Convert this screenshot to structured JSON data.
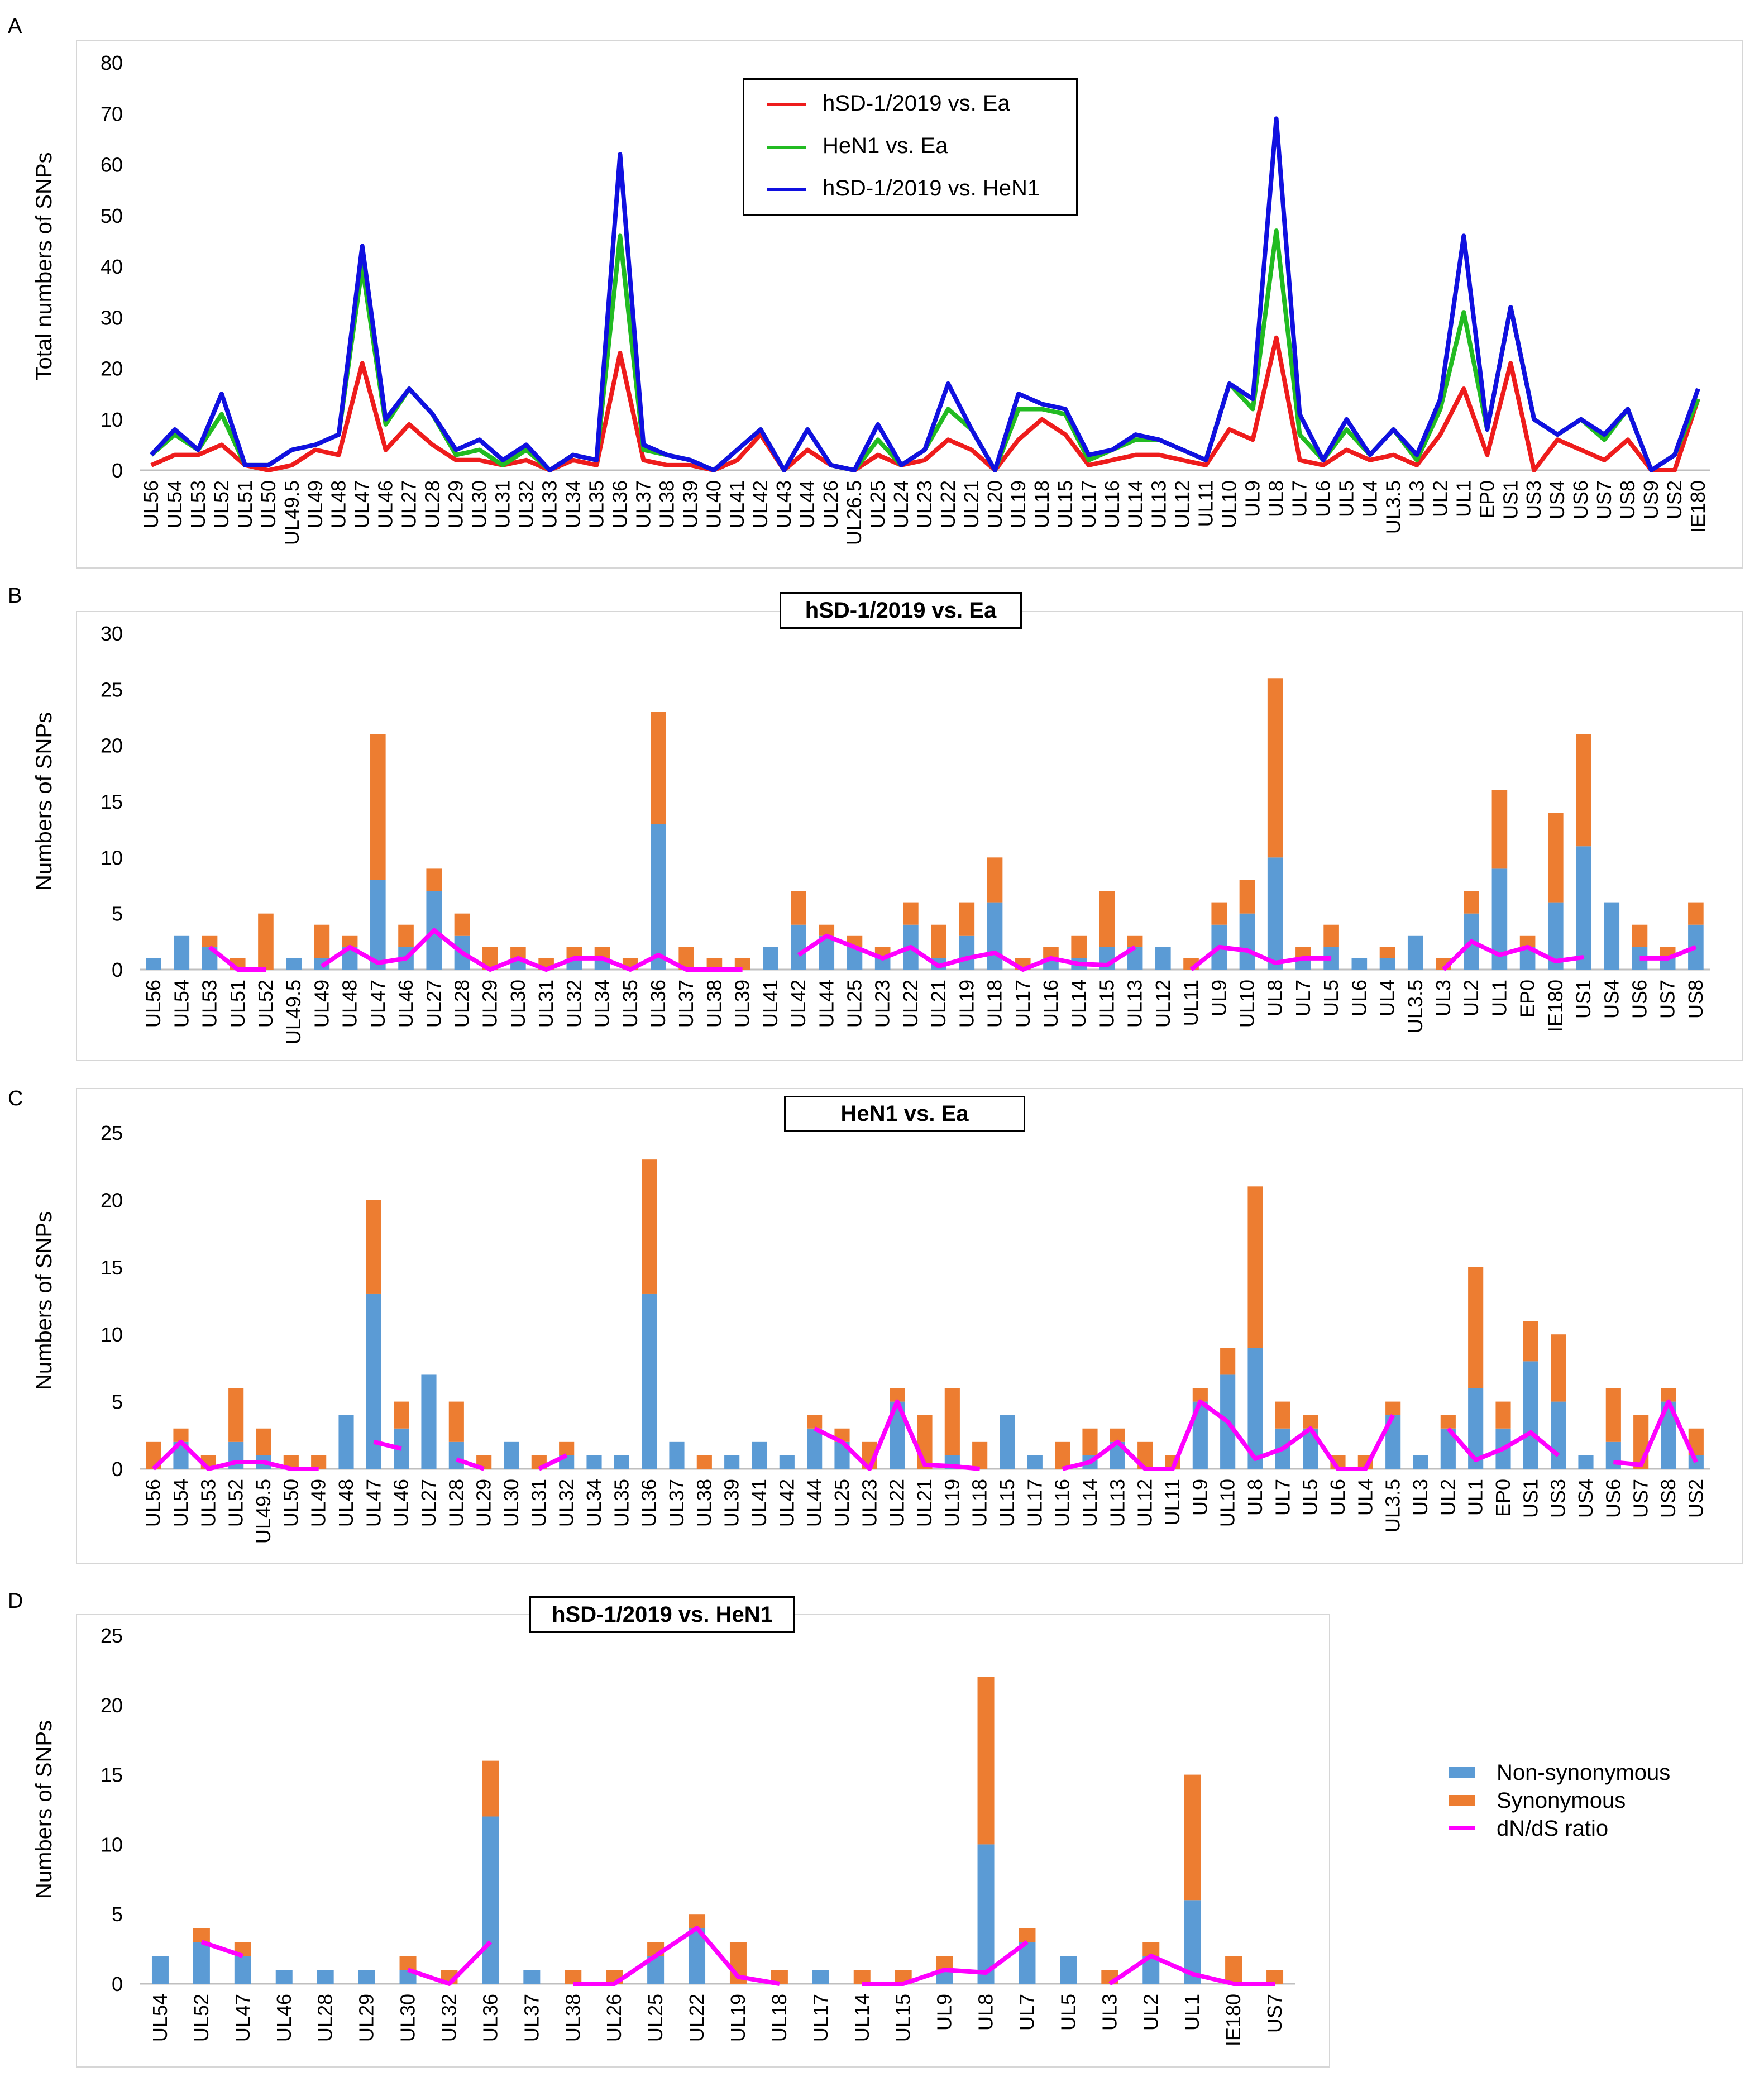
{
  "panels": {
    "a": {
      "letter": "A"
    },
    "b": {
      "letter": "B"
    },
    "c": {
      "letter": "C"
    },
    "d": {
      "letter": "D"
    }
  },
  "colors": {
    "red": "#ee1c1c",
    "green": "#22bb22",
    "blue": "#1010e0",
    "nonsyn": "#5b9bd5",
    "syn": "#ed7d31",
    "ratio": "#ff00ff",
    "grid": "#d9d9d9",
    "axis": "#bfbfbf"
  },
  "legend_a": {
    "items": [
      {
        "label": "hSD-1/2019 vs. Ea",
        "color": "#ee1c1c"
      },
      {
        "label": "HeN1 vs. Ea",
        "color": "#22bb22"
      },
      {
        "label": "hSD-1/2019 vs. HeN1",
        "color": "#1010e0"
      }
    ]
  },
  "legend_d": {
    "items": [
      {
        "label": "Non-synonymous",
        "kind": "swatch",
        "color": "#5b9bd5"
      },
      {
        "label": "Synonymous",
        "kind": "swatch",
        "color": "#ed7d31"
      },
      {
        "label": "dN/dS ratio",
        "kind": "line",
        "color": "#ff00ff"
      }
    ]
  },
  "chart_data": [
    {
      "id": "A",
      "type": "line",
      "title": "",
      "xlabel": "",
      "ylabel": "Total numbers of SNPs",
      "ylim": [
        0,
        80
      ],
      "yticks": [
        0,
        10,
        20,
        30,
        40,
        50,
        60,
        70,
        80
      ],
      "categories": [
        "UL56",
        "UL54",
        "UL53",
        "UL52",
        "UL51",
        "UL50",
        "UL49.5",
        "UL49",
        "UL48",
        "UL47",
        "UL46",
        "UL27",
        "UL28",
        "UL29",
        "UL30",
        "UL31",
        "UL32",
        "UL33",
        "UL34",
        "UL35",
        "UL36",
        "UL37",
        "UL38",
        "UL39",
        "UL40",
        "UL41",
        "UL42",
        "UL43",
        "UL44",
        "UL26",
        "UL26.5",
        "UL25",
        "UL24",
        "UL23",
        "UL22",
        "UL21",
        "UL20",
        "UL19",
        "UL18",
        "UL15",
        "UL17",
        "UL16",
        "UL14",
        "UL13",
        "UL12",
        "UL11",
        "UL10",
        "UL9",
        "UL8",
        "UL7",
        "UL6",
        "UL5",
        "UL4",
        "UL3.5",
        "UL3",
        "UL2",
        "UL1",
        "EP0",
        "US1",
        "US3",
        "US4",
        "US6",
        "US7",
        "US8",
        "US9",
        "US2",
        "IE180"
      ],
      "series": [
        {
          "name": "hSD-1/2019 vs. Ea",
          "color": "#ee1c1c",
          "values": [
            1,
            3,
            3,
            5,
            1,
            0,
            1,
            4,
            3,
            21,
            4,
            9,
            5,
            2,
            2,
            1,
            2,
            0,
            2,
            1,
            23,
            2,
            1,
            1,
            0,
            2,
            7,
            0,
            4,
            1,
            0,
            3,
            1,
            2,
            6,
            4,
            0,
            6,
            10,
            7,
            1,
            2,
            3,
            3,
            2,
            1,
            8,
            6,
            26,
            2,
            1,
            4,
            2,
            3,
            1,
            7,
            16,
            3,
            21,
            0,
            6,
            4,
            2,
            6,
            0,
            0,
            14
          ]
        },
        {
          "name": "HeN1 vs. Ea",
          "color": "#22bb22",
          "values": [
            3,
            7,
            4,
            11,
            1,
            1,
            4,
            5,
            7,
            40,
            9,
            16,
            11,
            3,
            4,
            1,
            4,
            0,
            3,
            2,
            46,
            4,
            3,
            2,
            0,
            4,
            8,
            0,
            8,
            1,
            0,
            6,
            1,
            4,
            12,
            8,
            0,
            12,
            12,
            11,
            2,
            4,
            6,
            6,
            4,
            2,
            17,
            12,
            47,
            7,
            2,
            8,
            3,
            8,
            2,
            12,
            31,
            8,
            32,
            10,
            7,
            10,
            6,
            12,
            0,
            3,
            14
          ]
        },
        {
          "name": "hSD-1/2019 vs. HeN1",
          "color": "#1010e0",
          "values": [
            3,
            8,
            4,
            15,
            1,
            1,
            4,
            5,
            7,
            44,
            10,
            16,
            11,
            4,
            6,
            2,
            5,
            0,
            3,
            2,
            62,
            5,
            3,
            2,
            0,
            4,
            8,
            0,
            8,
            1,
            0,
            9,
            1,
            4,
            17,
            8,
            0,
            15,
            13,
            12,
            3,
            4,
            7,
            6,
            4,
            2,
            17,
            14,
            69,
            11,
            2,
            10,
            3,
            8,
            3,
            14,
            46,
            8,
            32,
            10,
            7,
            10,
            7,
            12,
            0,
            3,
            16
          ]
        }
      ]
    },
    {
      "id": "B",
      "type": "bar",
      "title": "hSD-1/2019 vs. Ea",
      "xlabel": "",
      "ylabel": "Numbers of SNPs",
      "ylim": [
        0,
        30
      ],
      "yticks": [
        0,
        5,
        10,
        15,
        20,
        25,
        30
      ],
      "stacked": true,
      "categories": [
        "UL56",
        "UL54",
        "UL53",
        "UL51",
        "UL52",
        "UL49.5",
        "UL49",
        "UL48",
        "UL47",
        "UL46",
        "UL27",
        "UL28",
        "UL29",
        "UL30",
        "UL31",
        "UL32",
        "UL34",
        "UL35",
        "UL36",
        "UL37",
        "UL38",
        "UL39",
        "UL41",
        "UL42",
        "UL44",
        "UL25",
        "UL23",
        "UL22",
        "UL21",
        "UL19",
        "UL18",
        "UL17",
        "UL16",
        "UL14",
        "UL15",
        "UL13",
        "UL12",
        "UL11",
        "UL9",
        "UL10",
        "UL8",
        "UL7",
        "UL5",
        "UL6",
        "UL4",
        "UL3.5",
        "UL3",
        "UL2",
        "UL1",
        "EP0",
        "IE180",
        "US1",
        "US4",
        "US6",
        "US7",
        "US8"
      ],
      "series": [
        {
          "name": "Non-synonymous",
          "color": "#5b9bd5",
          "values": [
            1,
            3,
            2,
            0,
            0,
            1,
            1,
            2,
            8,
            2,
            7,
            3,
            0,
            1,
            0,
            1,
            1,
            0,
            13,
            0,
            0,
            0,
            2,
            4,
            3,
            2,
            1,
            4,
            1,
            3,
            6,
            0,
            1,
            1,
            2,
            2,
            2,
            0,
            4,
            5,
            10,
            1,
            2,
            1,
            1,
            3,
            0,
            5,
            9,
            2,
            6,
            11,
            6,
            2,
            1,
            4
          ]
        },
        {
          "name": "Synonymous",
          "color": "#ed7d31",
          "values": [
            0,
            0,
            1,
            1,
            5,
            0,
            3,
            1,
            13,
            2,
            2,
            2,
            2,
            1,
            1,
            1,
            1,
            1,
            10,
            2,
            1,
            1,
            0,
            3,
            1,
            1,
            1,
            2,
            3,
            3,
            4,
            1,
            1,
            2,
            5,
            1,
            0,
            1,
            2,
            3,
            16,
            1,
            2,
            0,
            1,
            0,
            1,
            2,
            7,
            1,
            8,
            10,
            0,
            2,
            1,
            2
          ]
        },
        {
          "name": "dN/dS ratio",
          "color": "#ff00ff",
          "values": [
            null,
            null,
            2,
            0,
            0,
            null,
            0.3,
            2,
            0.6,
            1,
            3.5,
            1.5,
            0,
            1,
            0,
            1,
            1,
            0,
            1.3,
            0,
            0,
            0,
            null,
            1.3,
            3,
            2,
            1,
            2,
            0.3,
            1,
            1.5,
            0,
            1,
            0.5,
            0.4,
            2,
            null,
            0,
            2,
            1.7,
            0.6,
            1,
            1,
            null,
            null,
            null,
            0,
            2.5,
            1.3,
            2,
            0.75,
            1.1,
            null,
            1,
            1,
            2
          ]
        }
      ]
    },
    {
      "id": "C",
      "type": "bar",
      "title": "HeN1 vs. Ea",
      "xlabel": "",
      "ylabel": "Numbers of SNPs",
      "ylim": [
        0,
        25
      ],
      "yticks": [
        0,
        5,
        10,
        15,
        20,
        25
      ],
      "stacked": true,
      "categories": [
        "UL56",
        "UL54",
        "UL53",
        "UL52",
        "UL49.5",
        "UL50",
        "UL49",
        "UL48",
        "UL47",
        "UL46",
        "UL27",
        "UL28",
        "UL29",
        "UL30",
        "UL31",
        "UL32",
        "UL34",
        "UL35",
        "UL36",
        "UL37",
        "UL38",
        "UL39",
        "UL41",
        "UL42",
        "UL44",
        "UL25",
        "UL23",
        "UL22",
        "UL21",
        "UL19",
        "UL18",
        "UL15",
        "UL17",
        "UL16",
        "UL14",
        "UL13",
        "UL12",
        "UL11",
        "UL9",
        "UL10",
        "UL8",
        "UL7",
        "UL5",
        "UL6",
        "UL4",
        "UL3.5",
        "UL3",
        "UL2",
        "UL1",
        "EP0",
        "US1",
        "US3",
        "US4",
        "US6",
        "US7",
        "US8",
        "US2"
      ],
      "series": [
        {
          "name": "Non-synonymous",
          "color": "#5b9bd5",
          "values": [
            0,
            2,
            0,
            2,
            1,
            0,
            0,
            4,
            13,
            3,
            7,
            2,
            0,
            2,
            0,
            1,
            1,
            1,
            13,
            2,
            0,
            1,
            2,
            1,
            3,
            2,
            0,
            5,
            0,
            1,
            0,
            4,
            1,
            0,
            1,
            2,
            0,
            0,
            5,
            7,
            9,
            3,
            3,
            0,
            0,
            4,
            1,
            3,
            6,
            3,
            8,
            5,
            1,
            2,
            0,
            5,
            1
          ]
        },
        {
          "name": "Synonymous",
          "color": "#ed7d31",
          "values": [
            2,
            1,
            1,
            4,
            2,
            1,
            1,
            0,
            7,
            2,
            0,
            3,
            1,
            0,
            1,
            1,
            0,
            0,
            10,
            0,
            1,
            0,
            0,
            0,
            1,
            1,
            2,
            1,
            4,
            5,
            2,
            0,
            0,
            2,
            2,
            1,
            2,
            1,
            1,
            2,
            12,
            2,
            1,
            1,
            1,
            1,
            0,
            1,
            9,
            2,
            3,
            5,
            0,
            4,
            4,
            1,
            2
          ]
        },
        {
          "name": "dN/dS ratio",
          "color": "#ff00ff",
          "values": [
            0,
            2,
            0,
            0.5,
            0.5,
            0,
            0,
            null,
            2,
            1.5,
            null,
            0.7,
            0,
            null,
            0,
            1,
            null,
            null,
            1.3,
            null,
            0,
            null,
            null,
            null,
            3,
            2,
            0,
            5,
            0.3,
            0.2,
            0,
            null,
            null,
            0,
            0.5,
            2,
            0,
            0,
            5,
            3.5,
            0.75,
            1.5,
            3,
            0,
            0,
            4,
            null,
            3,
            0.67,
            1.5,
            2.7,
            1,
            null,
            0.5,
            0.3,
            5,
            0.5
          ]
        }
      ]
    },
    {
      "id": "D",
      "type": "bar",
      "title": "hSD-1/2019 vs. HeN1",
      "xlabel": "",
      "ylabel": "Numbers of SNPs",
      "ylim": [
        0,
        25
      ],
      "yticks": [
        0,
        5,
        10,
        15,
        20,
        25
      ],
      "stacked": true,
      "categories": [
        "UL54",
        "UL52",
        "UL47",
        "UL46",
        "UL28",
        "UL29",
        "UL30",
        "UL32",
        "UL36",
        "UL37",
        "UL38",
        "UL26",
        "UL25",
        "UL22",
        "UL19",
        "UL18",
        "UL17",
        "UL14",
        "UL15",
        "UL9",
        "UL8",
        "UL7",
        "UL5",
        "UL3",
        "UL2",
        "UL1",
        "IE180",
        "US7"
      ],
      "series": [
        {
          "name": "Non-synonymous",
          "color": "#5b9bd5",
          "values": [
            2,
            3,
            2,
            1,
            1,
            1,
            1,
            0,
            12,
            1,
            0,
            0,
            2,
            4,
            0,
            0,
            1,
            0,
            0,
            1,
            10,
            3,
            2,
            0,
            2,
            6,
            0,
            0
          ]
        },
        {
          "name": "Synonymous",
          "color": "#ed7d31",
          "values": [
            0,
            1,
            1,
            0,
            0,
            0,
            1,
            1,
            4,
            0,
            1,
            1,
            1,
            1,
            3,
            1,
            0,
            1,
            1,
            1,
            12,
            1,
            0,
            1,
            1,
            9,
            2,
            1
          ]
        },
        {
          "name": "dN/dS ratio",
          "color": "#ff00ff",
          "values": [
            null,
            3,
            2,
            null,
            null,
            null,
            1,
            0,
            3,
            null,
            0,
            0,
            2,
            4,
            0.5,
            0,
            null,
            0,
            0,
            1,
            0.8,
            3,
            null,
            0,
            2,
            0.7,
            0,
            0
          ]
        }
      ]
    }
  ]
}
